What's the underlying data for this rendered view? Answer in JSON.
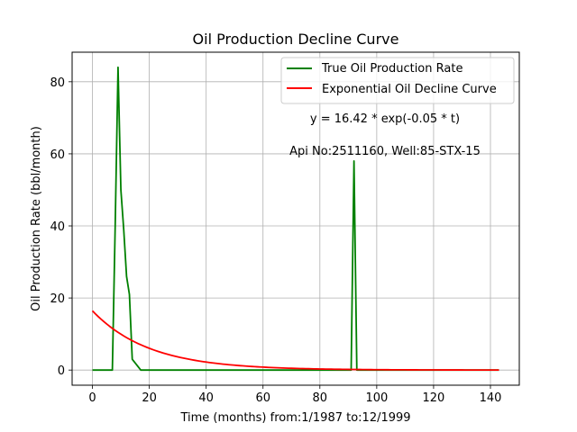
{
  "chart_data": {
    "type": "line",
    "title": "Oil Production Decline Curve",
    "xlabel": "Time (months) from:1/1987 to:12/1999",
    "ylabel": "Oil Production Rate (bbl/month)",
    "xlim": [
      -7.15,
      150.15
    ],
    "ylim": [
      -4.2,
      88.2
    ],
    "xticks": [
      0,
      20,
      40,
      60,
      80,
      100,
      120,
      140
    ],
    "yticks": [
      0,
      20,
      40,
      60,
      80
    ],
    "grid": true,
    "legend_position": "top-right",
    "annotations": [
      "y = 16.42 * exp(-0.05 * t)",
      "Api No:2511160, Well:85-STX-15"
    ],
    "series": [
      {
        "name": "True Oil Production Rate",
        "color": "#008000",
        "x": [
          0,
          7,
          8,
          9,
          10,
          11,
          12,
          13,
          14,
          15,
          16,
          17,
          90,
          91,
          92,
          93,
          94,
          143
        ],
        "y": [
          0,
          0,
          40,
          84,
          50,
          39,
          26,
          21,
          3,
          2,
          1,
          0,
          0,
          0,
          58,
          0,
          0,
          0
        ]
      },
      {
        "name": "Exponential Oil Decline Curve",
        "color": "#ff0000",
        "equation": {
          "a": 16.42,
          "b": 0.05,
          "x_start": 0,
          "x_end": 143
        }
      }
    ]
  }
}
